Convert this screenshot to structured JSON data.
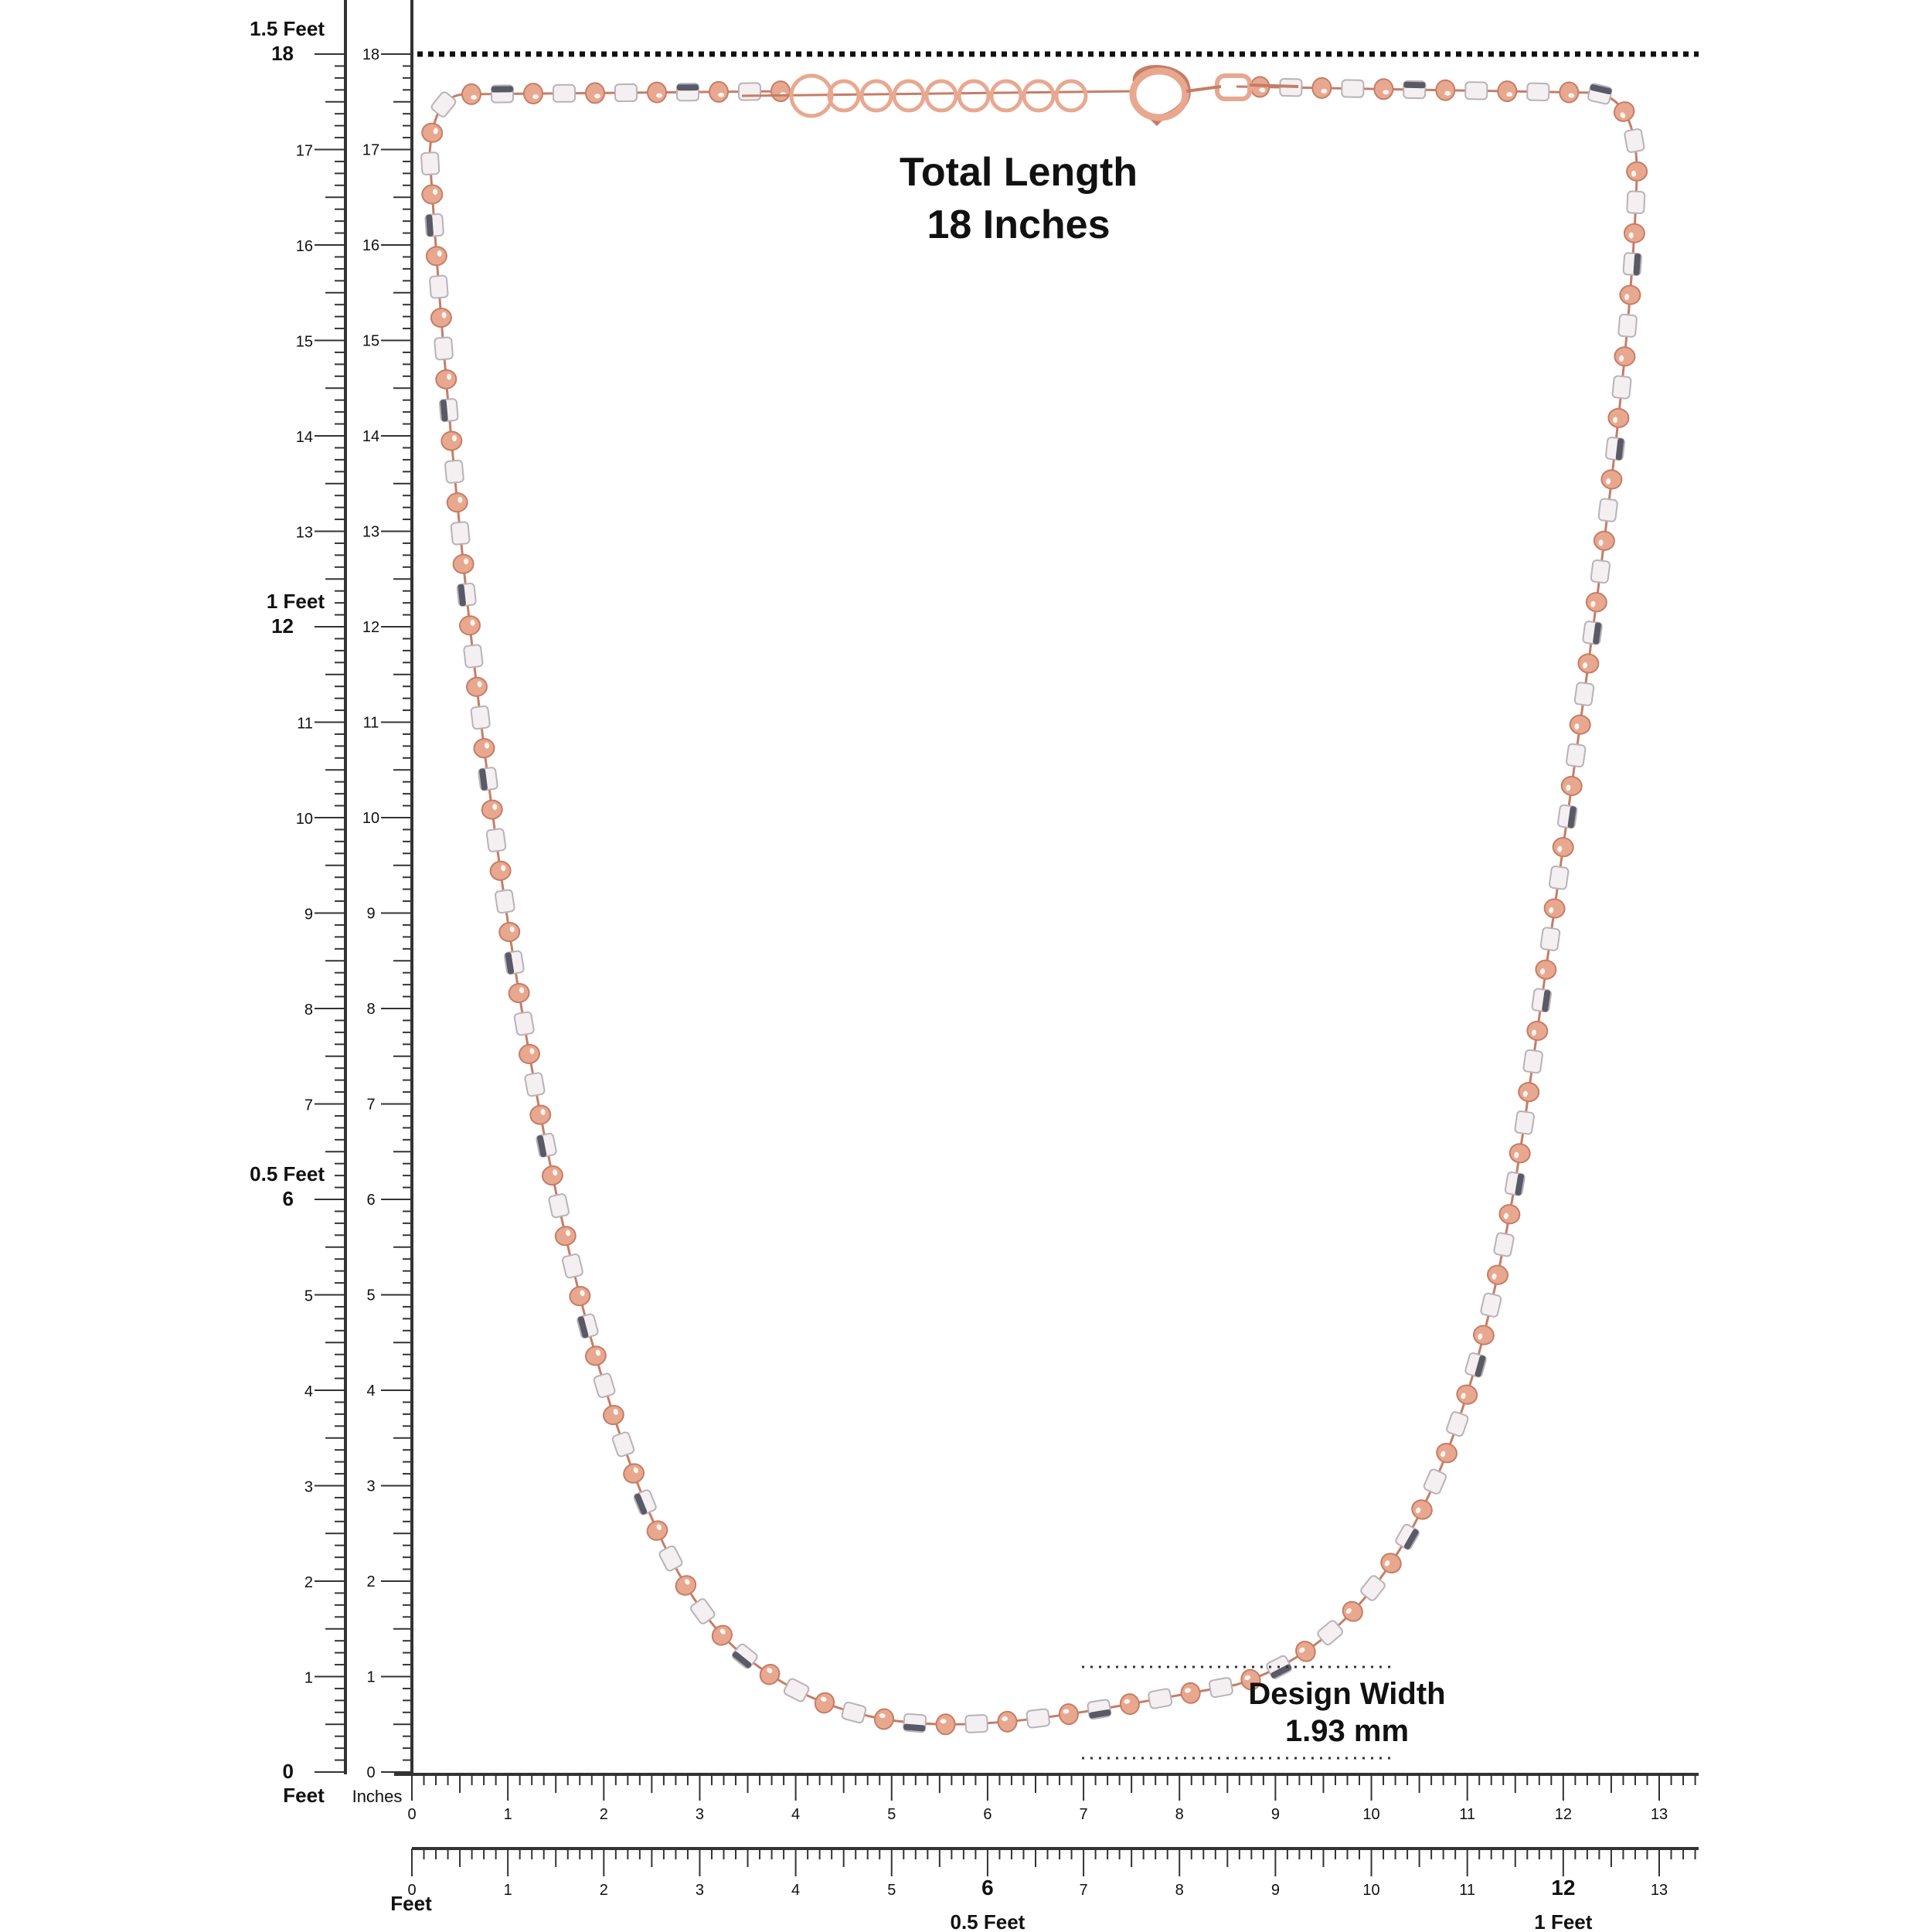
{
  "ruler_left": {
    "unit_label_feet": "Feet",
    "feet_marks": [
      {
        "inch": 0,
        "label": "0"
      },
      {
        "inch": 6,
        "label": "0.5 Feet"
      },
      {
        "inch": 12,
        "label": "1 Feet"
      },
      {
        "inch": 18,
        "label": "1.5 Feet"
      }
    ]
  },
  "ruler_inch_vertical": {
    "unit_label": "Inches",
    "range": [
      0,
      18
    ]
  },
  "ruler_bottom_inch": {
    "range": [
      0,
      13
    ]
  },
  "ruler_bottom_feet": {
    "unit_label": "Feet",
    "feet_marks": [
      {
        "inch": 6,
        "label": "0.5 Feet",
        "number": "6"
      },
      {
        "inch": 12,
        "label": "1 Feet",
        "number": "12"
      }
    ]
  },
  "annotations": {
    "total_length_line1": "Total Length",
    "total_length_line2": "18 Inches",
    "design_width_line1": "Design Width",
    "design_width_line2": "1.93 mm"
  },
  "colors": {
    "rose_gold": "#e8a890",
    "rose_gold_dark": "#c67d66",
    "silver": "#f4f0f2",
    "silver_shadow": "#5a5a66",
    "ruler": "#333333"
  }
}
